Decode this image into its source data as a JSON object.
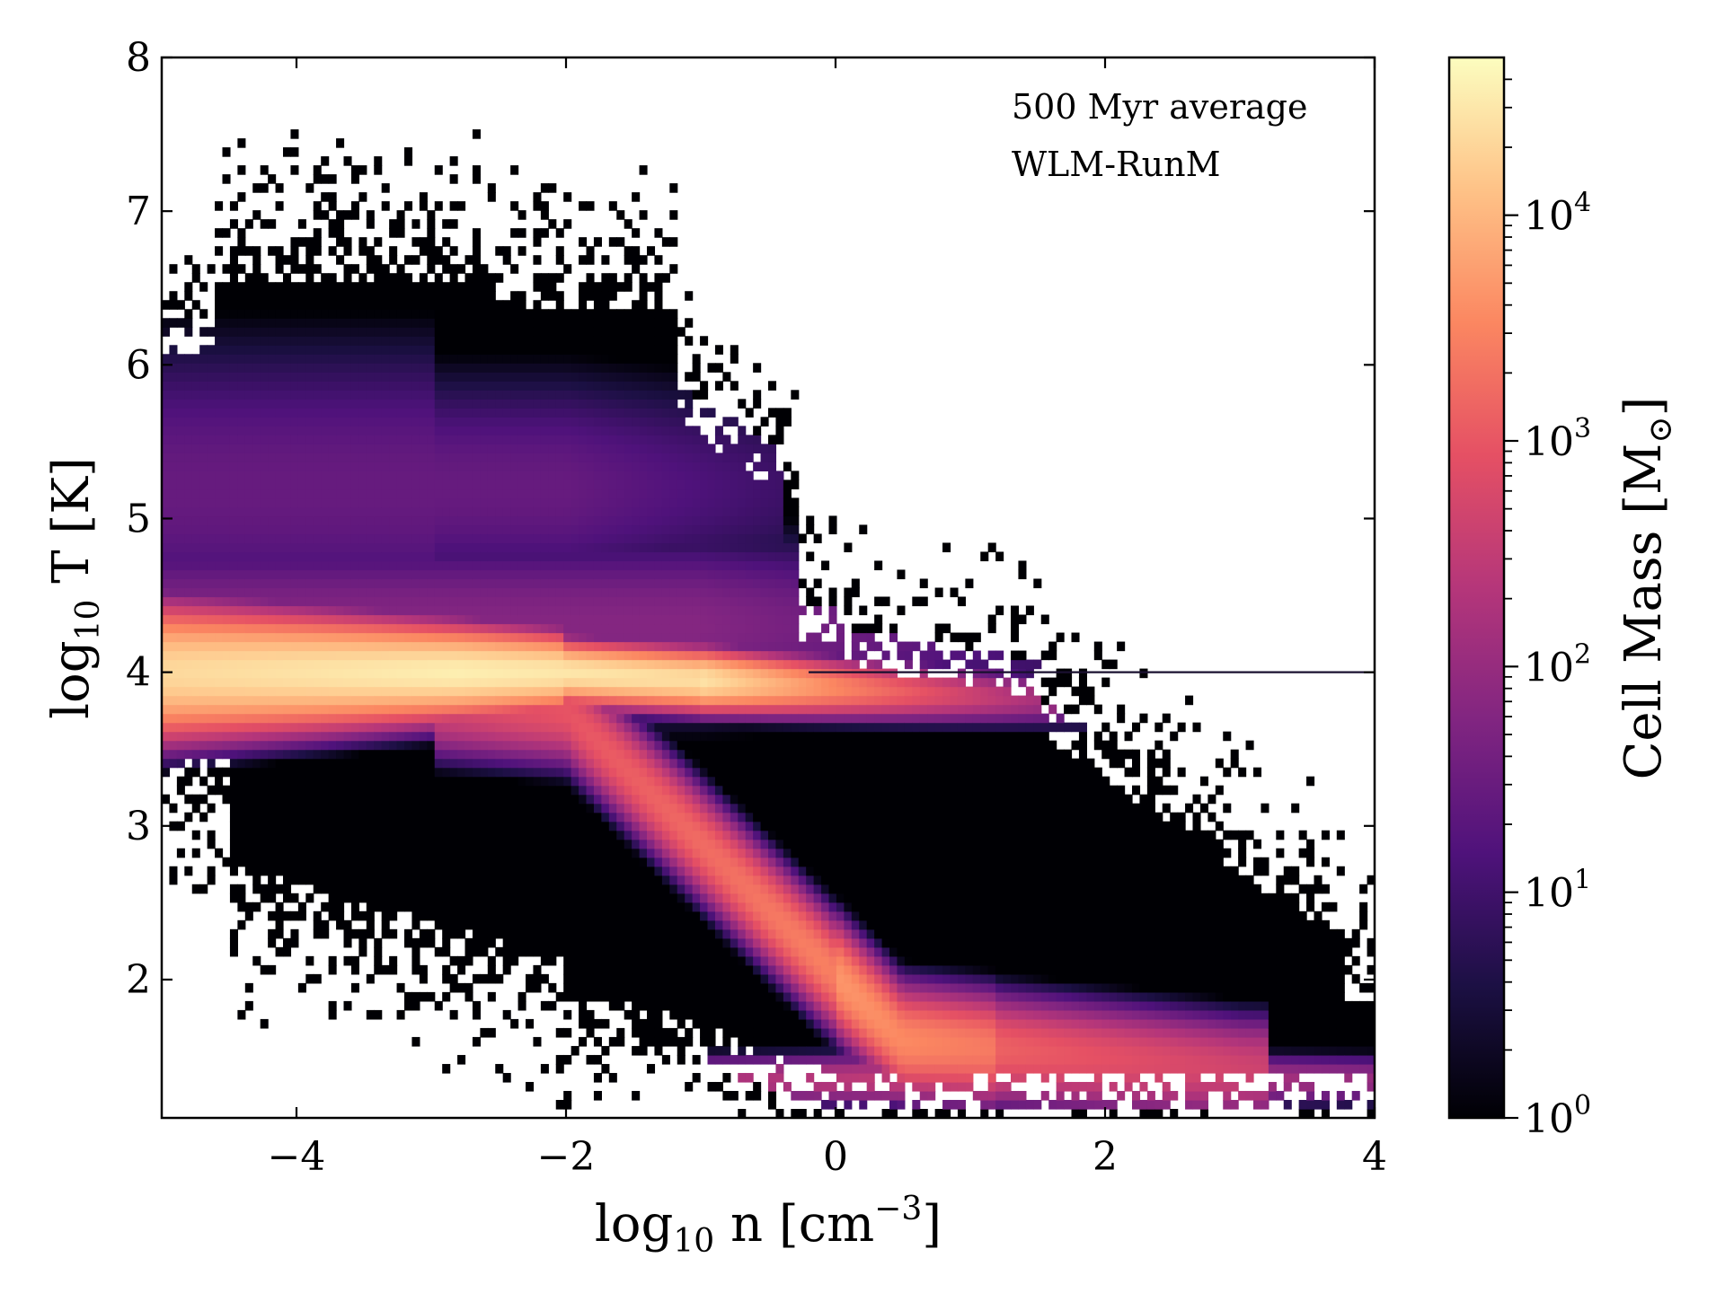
{
  "chart_data": {
    "type": "heatmap",
    "plot_kind": "2D mass-weighted phase diagram (density vs temperature)",
    "annotations": [
      "500 Myr average",
      "WLM-RunM"
    ],
    "x_axis": {
      "label_base": "log",
      "label_sub": "10",
      "label_var": " n [cm",
      "label_sup": "−3",
      "label_end": "]",
      "range": [
        -5,
        4
      ],
      "ticks": [
        -4,
        -2,
        0,
        2,
        4
      ],
      "tick_labels": [
        "−4",
        "−2",
        "0",
        "2",
        "4"
      ]
    },
    "y_axis": {
      "label_base": "log",
      "label_sub": "10",
      "label_var": " T [K]",
      "range": [
        1.1,
        8
      ],
      "ticks": [
        2,
        3,
        4,
        5,
        6,
        7,
        8
      ],
      "tick_labels": [
        "2",
        "3",
        "4",
        "5",
        "6",
        "7",
        "8"
      ]
    },
    "colorbar": {
      "label_text": "Cell Mass [M",
      "label_sub": "⊙",
      "label_end": "]",
      "scale": "log",
      "range": [
        1,
        50000
      ],
      "ticks": [
        {
          "value": 1,
          "base": "10",
          "exp": "0"
        },
        {
          "value": 10,
          "base": "10",
          "exp": "1"
        },
        {
          "value": 100,
          "base": "10",
          "exp": "2"
        },
        {
          "value": 1000,
          "base": "10",
          "exp": "3"
        },
        {
          "value": 10000,
          "base": "10",
          "exp": "4"
        }
      ],
      "colormap": "magma",
      "colormap_stops": [
        "#000004",
        "#1c1044",
        "#4f127b",
        "#812581",
        "#b5367a",
        "#e55064",
        "#fb8761",
        "#fec287",
        "#fcfdbf"
      ]
    },
    "features": [
      {
        "name": "warm equilibrium ridge",
        "peak_log_n": -2.5,
        "log_T": 4.0,
        "peak_mass": 50000
      },
      {
        "name": "transition branch",
        "from_log_n": -2,
        "to_log_n": 0.5,
        "log_T_from": 3.8,
        "log_T_to": 1.6,
        "mass": 2000
      },
      {
        "name": "cold dense branch",
        "peak_log_n": 0.5,
        "log_T": 1.5,
        "peak_mass": 5000
      },
      {
        "name": "hot diffuse halo",
        "log_n_range": [
          -5,
          -0.5
        ],
        "log_T_range": [
          4.5,
          7.4
        ],
        "mass": 3
      }
    ]
  }
}
